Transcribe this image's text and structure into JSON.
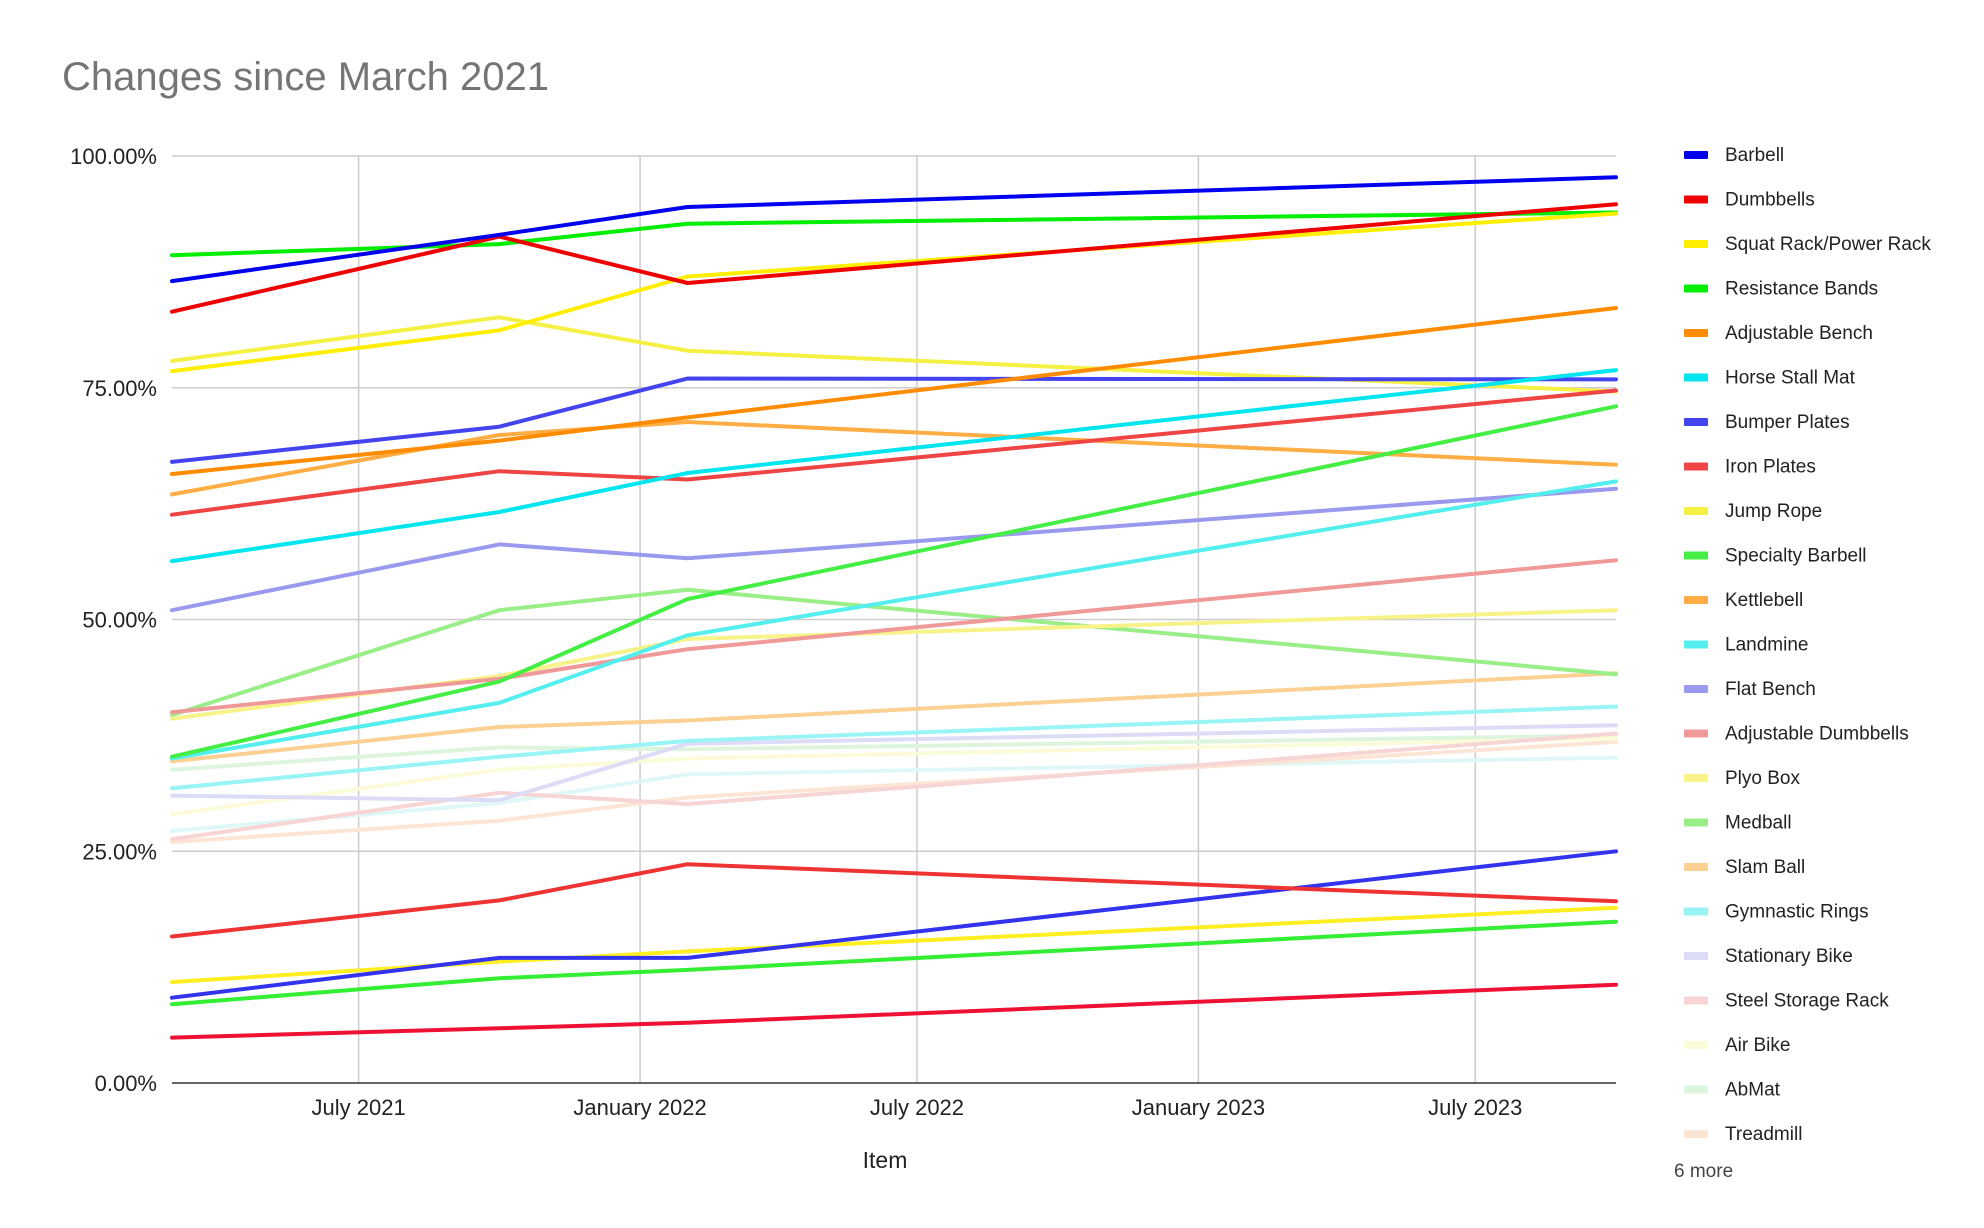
{
  "chart_data": {
    "type": "line",
    "title": "Changes since March 2021",
    "xlabel": "Item",
    "ylabel": "",
    "ylim": [
      0,
      100
    ],
    "yticks": [
      "0.00%",
      "25.00%",
      "50.00%",
      "75.00%",
      "100.00%"
    ],
    "xticks": [
      "July 2021",
      "January 2022",
      "July 2022",
      "January 2023",
      "July 2023"
    ],
    "xtick_dates": [
      "2021-07-01",
      "2022-01-01",
      "2022-07-01",
      "2023-01-01",
      "2023-07-01"
    ],
    "x": [
      "2021-03-01",
      "2021-10-01",
      "2022-02-01",
      "2023-10-01"
    ],
    "grid": true,
    "legend": "right",
    "legend_more": "6 more",
    "series": [
      {
        "name": "Barbell",
        "color": "#0000ee",
        "x": [
          "2021-03-01",
          "2021-10-01",
          "2022-02-01",
          "2023-10-01"
        ],
        "values": [
          86.5,
          91.5,
          94.5,
          97.7
        ]
      },
      {
        "name": "Dumbbells",
        "color": "#ee0000",
        "x": [
          "2021-03-01",
          "2021-10-01",
          "2022-02-01",
          "2023-10-01"
        ],
        "values": [
          83.2,
          91.3,
          86.3,
          94.8
        ]
      },
      {
        "name": "Squat Rack/Power Rack",
        "color": "#ffee00",
        "x": [
          "2021-03-01",
          "2021-10-01",
          "2022-02-01",
          "2023-10-01"
        ],
        "values": [
          76.8,
          81.2,
          87.0,
          93.8
        ]
      },
      {
        "name": "Resistance Bands",
        "color": "#00ee00",
        "x": [
          "2021-03-01",
          "2021-10-01",
          "2022-02-01",
          "2023-10-01"
        ],
        "values": [
          89.3,
          90.5,
          92.7,
          93.9
        ]
      },
      {
        "name": "Adjustable Bench",
        "color": "#ff8c00",
        "x": [
          "2021-03-01",
          "2021-10-01",
          "2022-02-01",
          "2023-10-01"
        ],
        "values": [
          65.7,
          69.3,
          71.8,
          83.6
        ]
      },
      {
        "name": "Horse Stall Mat",
        "color": "#00e5ee",
        "x": [
          "2021-03-01",
          "2021-10-01",
          "2022-02-01",
          "2023-10-01"
        ],
        "values": [
          56.3,
          61.6,
          65.8,
          76.9
        ]
      },
      {
        "name": "Bumper Plates",
        "color": "#4444ee",
        "x": [
          "2021-03-01",
          "2021-10-01",
          "2022-02-01",
          "2023-10-01"
        ],
        "values": [
          67.0,
          70.8,
          76.0,
          75.9
        ]
      },
      {
        "name": "Iron Plates",
        "color": "#ee4444",
        "x": [
          "2021-03-01",
          "2021-10-01",
          "2022-02-01",
          "2023-10-01"
        ],
        "values": [
          61.3,
          66.0,
          65.1,
          74.7
        ]
      },
      {
        "name": "Jump Rope",
        "color": "#f5f044",
        "x": [
          "2021-03-01",
          "2021-10-01",
          "2022-02-01",
          "2023-10-01"
        ],
        "values": [
          77.9,
          82.6,
          79.0,
          74.6
        ]
      },
      {
        "name": "Specialty Barbell",
        "color": "#44ee44",
        "x": [
          "2021-03-01",
          "2021-10-01",
          "2022-02-01",
          "2023-10-01"
        ],
        "values": [
          35.2,
          43.3,
          52.2,
          73.0
        ]
      },
      {
        "name": "Kettlebell",
        "color": "#ffad44",
        "x": [
          "2021-03-01",
          "2021-10-01",
          "2022-02-01",
          "2023-10-01"
        ],
        "values": [
          63.5,
          69.9,
          71.3,
          66.7
        ]
      },
      {
        "name": "Landmine",
        "color": "#55eeee",
        "x": [
          "2021-03-01",
          "2021-10-01",
          "2022-02-01",
          "2023-10-01"
        ],
        "values": [
          35.0,
          41.0,
          48.3,
          64.9
        ]
      },
      {
        "name": "Flat Bench",
        "color": "#9999ee",
        "x": [
          "2021-03-01",
          "2021-10-01",
          "2022-02-01",
          "2023-10-01"
        ],
        "values": [
          51.0,
          58.1,
          56.6,
          64.1
        ]
      },
      {
        "name": "Adjustable Dumbbells",
        "color": "#f09999",
        "x": [
          "2021-03-01",
          "2021-10-01",
          "2022-02-01",
          "2023-10-01"
        ],
        "values": [
          40.0,
          43.6,
          46.8,
          56.4
        ]
      },
      {
        "name": "Plyo Box",
        "color": "#f7f388",
        "x": [
          "2021-03-01",
          "2021-10-01",
          "2022-02-01",
          "2023-10-01"
        ],
        "values": [
          39.3,
          43.9,
          47.9,
          51.0
        ]
      },
      {
        "name": "Medball",
        "color": "#99ee88",
        "x": [
          "2021-03-01",
          "2021-10-01",
          "2022-02-01",
          "2023-10-01"
        ],
        "values": [
          39.7,
          51.0,
          53.2,
          44.1
        ]
      },
      {
        "name": "Slam Ball",
        "color": "#fcd093",
        "x": [
          "2021-03-01",
          "2021-10-01",
          "2022-02-01",
          "2023-10-01"
        ],
        "values": [
          34.7,
          38.4,
          39.1,
          44.2
        ]
      },
      {
        "name": "Gymnastic Rings",
        "color": "#99f5f5",
        "x": [
          "2021-03-01",
          "2021-10-01",
          "2022-02-01",
          "2023-10-01"
        ],
        "values": [
          31.8,
          35.2,
          36.9,
          40.6
        ]
      },
      {
        "name": "Stationary Bike",
        "color": "#dcdcf7",
        "x": [
          "2021-03-01",
          "2021-10-01",
          "2022-02-01",
          "2023-10-01"
        ],
        "values": [
          31.0,
          30.5,
          36.6,
          38.6
        ]
      },
      {
        "name": "Steel Storage Rack",
        "color": "#f7d5d5",
        "x": [
          "2021-03-01",
          "2021-10-01",
          "2022-02-01",
          "2023-10-01"
        ],
        "values": [
          26.3,
          31.3,
          30.1,
          37.7
        ]
      },
      {
        "name": "Air Bike",
        "color": "#fbfbd8",
        "x": [
          "2021-03-01",
          "2021-10-01",
          "2022-02-01",
          "2023-10-01"
        ],
        "values": [
          29.0,
          33.8,
          35.0,
          37.2
        ]
      },
      {
        "name": "AbMat",
        "color": "#ddf5dd",
        "x": [
          "2021-03-01",
          "2021-10-01",
          "2022-02-01",
          "2023-10-01"
        ],
        "values": [
          33.8,
          36.2,
          36.0,
          37.5
        ]
      },
      {
        "name": "Treadmill",
        "color": "#fde5d5",
        "x": [
          "2021-03-01",
          "2021-10-01",
          "2022-02-01",
          "2023-10-01"
        ],
        "values": [
          26.0,
          28.3,
          30.8,
          36.8
        ]
      },
      {
        "name": "",
        "color": "#e0f7f7",
        "x": [
          "2021-03-01",
          "2021-10-01",
          "2022-02-01",
          "2023-10-01"
        ],
        "values": [
          27.2,
          30.2,
          33.3,
          35.1
        ]
      },
      {
        "name": "",
        "color": "#ee3333",
        "x": [
          "2021-03-01",
          "2021-10-01",
          "2022-02-01",
          "2023-10-01"
        ],
        "values": [
          15.8,
          19.7,
          23.6,
          19.6
        ]
      },
      {
        "name": "",
        "color": "#3333ee",
        "x": [
          "2021-03-01",
          "2021-10-01",
          "2022-02-01",
          "2023-10-01"
        ],
        "values": [
          9.2,
          13.5,
          13.5,
          25.0
        ]
      },
      {
        "name": "",
        "color": "#ffee22",
        "x": [
          "2021-03-01",
          "2021-10-01",
          "2022-02-01",
          "2023-10-01"
        ],
        "values": [
          10.9,
          13.1,
          14.2,
          18.9
        ]
      },
      {
        "name": "",
        "color": "#33ee33",
        "x": [
          "2021-03-01",
          "2021-10-01",
          "2022-02-01",
          "2023-10-01"
        ],
        "values": [
          8.5,
          11.3,
          12.2,
          17.4
        ]
      },
      {
        "name": "",
        "color": "#ee1133",
        "x": [
          "2021-03-01",
          "2021-10-01",
          "2022-02-01",
          "2023-10-01"
        ],
        "values": [
          4.9,
          5.9,
          6.5,
          10.6
        ]
      }
    ]
  }
}
